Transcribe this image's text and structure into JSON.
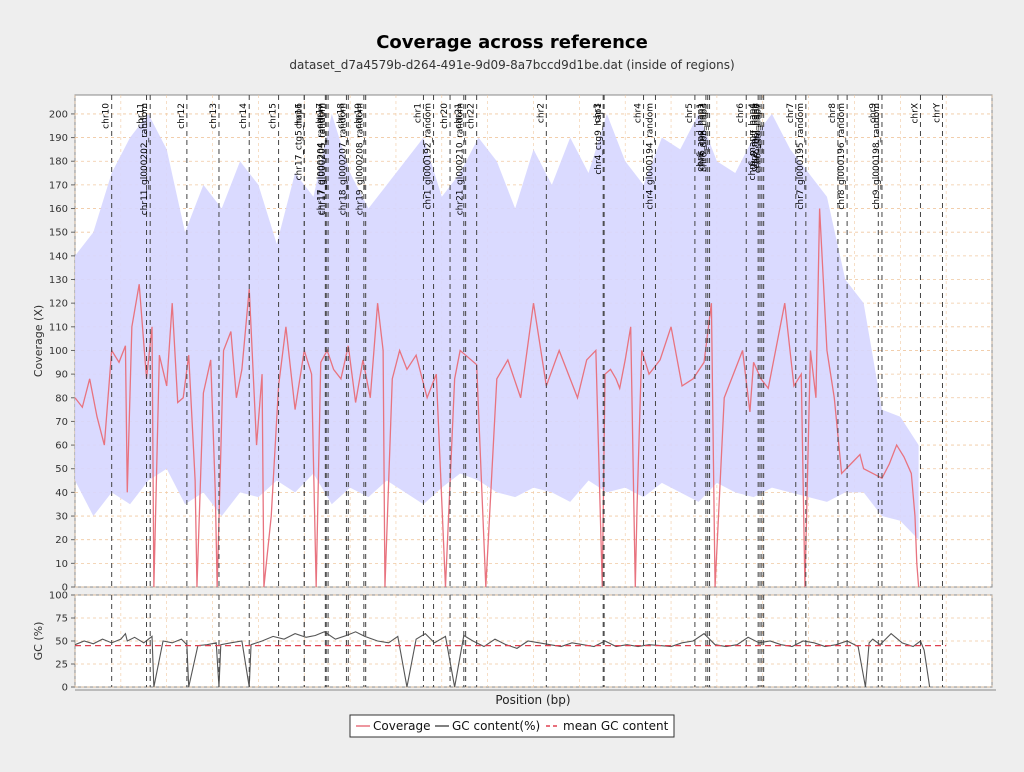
{
  "colors": {
    "background": "#eeeeee",
    "plot_bg": "#ffffff",
    "coverage_line": "#e8737f",
    "coverage_band": "#d6d6ff",
    "gc_line": "#555555",
    "mean_gc": "#e04050",
    "grid": "#f0c8a0",
    "chrom_line": "#444444"
  },
  "chart_data": [
    {
      "type": "line",
      "title": "Coverage across reference",
      "subtitle": "dataset_d7a4579b-d264-491e-9d09-8a7bccd9d1be.dat (inside of regions)",
      "xlabel": "Position (bp)",
      "ylabel": "Coverage (X)",
      "ylim": [
        0,
        208
      ],
      "yticks": [
        0,
        10,
        20,
        30,
        40,
        50,
        60,
        70,
        80,
        90,
        100,
        110,
        120,
        130,
        140,
        150,
        160,
        170,
        180,
        190,
        200
      ],
      "xlim": [
        0,
        1000
      ],
      "grid": true,
      "legend_position": "bottom-center",
      "series": [
        {
          "name": "Coverage",
          "x": [
            0,
            8,
            16,
            24,
            32,
            40,
            48,
            55,
            57,
            62,
            70,
            78,
            84,
            86,
            92,
            100,
            106,
            112,
            118,
            124,
            131,
            133,
            140,
            148,
            153,
            155,
            162,
            170,
            176,
            182,
            190,
            198,
            204,
            206,
            214,
            222,
            230,
            240,
            250,
            258,
            263,
            268,
            275,
            282,
            290,
            298,
            306,
            314,
            322,
            330,
            336,
            338,
            346,
            354,
            362,
            372,
            384,
            394,
            404,
            414,
            420,
            426,
            438,
            448,
            460,
            472,
            486,
            500,
            514,
            528,
            540,
            548,
            558,
            568,
            575,
            578,
            584,
            590,
            594,
            600,
            606,
            611,
            613,
            618,
            626,
            638,
            650,
            662,
            674,
            686,
            694,
            698,
            708,
            718,
            728,
            736,
            740,
            748,
            756,
            764,
            774,
            784,
            792,
            796,
            802,
            808,
            812,
            820,
            828,
            836,
            846,
            856,
            860,
            870,
            880,
            888,
            896,
            904,
            912,
            916,
            918,
            920
          ],
          "values": [
            80,
            76,
            88,
            72,
            60,
            100,
            95,
            102,
            40,
            110,
            128,
            88,
            110,
            0,
            98,
            85,
            120,
            78,
            80,
            98,
            45,
            0,
            82,
            96,
            40,
            0,
            100,
            108,
            80,
            92,
            126,
            60,
            90,
            0,
            30,
            85,
            110,
            75,
            100,
            90,
            0,
            95,
            100,
            92,
            88,
            102,
            78,
            96,
            80,
            120,
            100,
            0,
            88,
            100,
            92,
            98,
            80,
            90,
            0,
            88,
            100,
            98,
            94,
            0,
            88,
            96,
            80,
            120,
            85,
            100,
            88,
            80,
            96,
            100,
            0,
            90,
            92,
            88,
            84,
            96,
            110,
            0,
            35,
            100,
            90,
            96,
            110,
            85,
            88,
            95,
            120,
            0,
            80,
            90,
            100,
            74,
            95,
            88,
            84,
            100,
            120,
            85,
            90,
            0,
            100,
            80,
            160,
            100,
            80,
            48,
            52,
            56,
            50,
            48,
            46,
            52,
            60,
            55,
            48,
            30,
            10,
            0
          ]
        },
        {
          "name": "Coverage band",
          "x": [
            0,
            20,
            40,
            60,
            80,
            100,
            120,
            140,
            160,
            180,
            200,
            220,
            240,
            260,
            280,
            300,
            320,
            340,
            360,
            380,
            400,
            420,
            440,
            460,
            480,
            500,
            520,
            540,
            560,
            580,
            600,
            620,
            640,
            660,
            680,
            700,
            720,
            740,
            760,
            780,
            800,
            820,
            840,
            860,
            880,
            900,
            920
          ],
          "upper": [
            140,
            150,
            175,
            190,
            200,
            185,
            150,
            170,
            160,
            180,
            170,
            145,
            175,
            165,
            200,
            175,
            160,
            170,
            180,
            190,
            165,
            175,
            190,
            180,
            160,
            185,
            170,
            190,
            175,
            200,
            180,
            170,
            190,
            185,
            200,
            180,
            175,
            190,
            200,
            185,
            175,
            165,
            130,
            120,
            75,
            72,
            60
          ],
          "lower": [
            45,
            30,
            40,
            35,
            45,
            50,
            35,
            40,
            30,
            40,
            38,
            45,
            40,
            48,
            35,
            42,
            38,
            45,
            40,
            35,
            42,
            48,
            45,
            40,
            38,
            42,
            40,
            36,
            45,
            40,
            42,
            38,
            44,
            40,
            36,
            44,
            40,
            38,
            42,
            40,
            38,
            36,
            40,
            40,
            30,
            28,
            20
          ]
        }
      ],
      "chromosomes": [
        {
          "name": "chr10",
          "x": 40
        },
        {
          "name": "chr11",
          "x": 78
        },
        {
          "name": "chr11_gl000202_random",
          "x": 82
        },
        {
          "name": "chr12",
          "x": 122
        },
        {
          "name": "chr13",
          "x": 157
        },
        {
          "name": "chr14",
          "x": 190
        },
        {
          "name": "chr15",
          "x": 222
        },
        {
          "name": "chr16",
          "x": 250
        },
        {
          "name": "chr17",
          "x": 273
        },
        {
          "name": "chr17_ctg5_hap1",
          "x": 250
        },
        {
          "name": "chr17_gl000204_random",
          "x": 274
        },
        {
          "name": "chr17_gl000205_random",
          "x": 276
        },
        {
          "name": "chr18",
          "x": 296
        },
        {
          "name": "chr18_gl000207_random",
          "x": 298
        },
        {
          "name": "chr19",
          "x": 315
        },
        {
          "name": "chr19_gl000208_random",
          "x": 317
        },
        {
          "name": "chr1",
          "x": 380
        },
        {
          "name": "chr1_gl000192_random",
          "x": 391
        },
        {
          "name": "chr20",
          "x": 409
        },
        {
          "name": "chr21",
          "x": 424
        },
        {
          "name": "chr21_gl000210_random",
          "x": 426
        },
        {
          "name": "chr22",
          "x": 438
        },
        {
          "name": "chr2",
          "x": 514
        },
        {
          "name": "chr3",
          "x": 576
        },
        {
          "name": "chr4",
          "x": 620
        },
        {
          "name": "chr4_ctg9_hap1",
          "x": 577
        },
        {
          "name": "chr4_gl000194_random",
          "x": 633
        },
        {
          "name": "chr5",
          "x": 676
        },
        {
          "name": "chr6",
          "x": 732
        },
        {
          "name": "chr6_apd_hap1",
          "x": 688
        },
        {
          "name": "chr6_cox_hap2",
          "x": 690
        },
        {
          "name": "chr6_dbb_hap3",
          "x": 692
        },
        {
          "name": "chr6_mann_hap4",
          "x": 745
        },
        {
          "name": "chr6_mcf_hap5",
          "x": 747
        },
        {
          "name": "chr6_qbl_hap6",
          "x": 749
        },
        {
          "name": "chr6_ssto_hap7",
          "x": 751
        },
        {
          "name": "chr7",
          "x": 786
        },
        {
          "name": "chr7_gl000195_random",
          "x": 797
        },
        {
          "name": "chr8",
          "x": 832
        },
        {
          "name": "chr8_gl000196_random",
          "x": 842
        },
        {
          "name": "chr9",
          "x": 876
        },
        {
          "name": "chr9_gl000198_random",
          "x": 880
        },
        {
          "name": "chrX",
          "x": 922
        },
        {
          "name": "chrY",
          "x": 946
        }
      ]
    },
    {
      "type": "line",
      "title": "",
      "xlabel": "Position (bp)",
      "ylabel": "GC (%)",
      "ylim": [
        0,
        100
      ],
      "yticks": [
        0,
        25,
        50,
        75,
        100
      ],
      "xlim": [
        0,
        1000
      ],
      "grid": true,
      "series": [
        {
          "name": "GC content(%)",
          "x": [
            0,
            10,
            20,
            30,
            40,
            50,
            55,
            57,
            65,
            75,
            84,
            86,
            96,
            106,
            116,
            122,
            124,
            134,
            144,
            154,
            157,
            159,
            170,
            182,
            190,
            192,
            204,
            216,
            228,
            240,
            252,
            262,
            272,
            284,
            296,
            306,
            316,
            330,
            342,
            352,
            362,
            372,
            382,
            392,
            404,
            414,
            424,
            434,
            446,
            458,
            470,
            482,
            494,
            506,
            518,
            530,
            542,
            554,
            566,
            578,
            590,
            602,
            614,
            626,
            638,
            650,
            662,
            674,
            686,
            698,
            710,
            722,
            734,
            746,
            758,
            770,
            782,
            794,
            806,
            818,
            830,
            842,
            854,
            862,
            866,
            870,
            878,
            890,
            902,
            914,
            922,
            926,
            932
          ],
          "values": [
            46,
            50,
            47,
            52,
            48,
            52,
            58,
            50,
            54,
            48,
            55,
            0,
            50,
            48,
            52,
            46,
            0,
            45,
            46,
            48,
            0,
            46,
            48,
            50,
            0,
            46,
            50,
            55,
            52,
            58,
            54,
            56,
            60,
            52,
            56,
            60,
            55,
            50,
            48,
            55,
            0,
            52,
            58,
            48,
            55,
            0,
            56,
            50,
            44,
            52,
            46,
            42,
            50,
            48,
            46,
            44,
            48,
            46,
            44,
            50,
            44,
            46,
            44,
            46,
            45,
            44,
            48,
            50,
            58,
            46,
            44,
            46,
            54,
            48,
            50,
            46,
            44,
            50,
            48,
            44,
            46,
            50,
            44,
            0,
            48,
            52,
            46,
            58,
            48,
            44,
            50,
            40,
            0
          ]
        },
        {
          "name": "mean GC content",
          "values": [
            45
          ]
        }
      ]
    }
  ],
  "legend": {
    "items": [
      "Coverage",
      "GC content(%)",
      "mean GC content"
    ]
  }
}
